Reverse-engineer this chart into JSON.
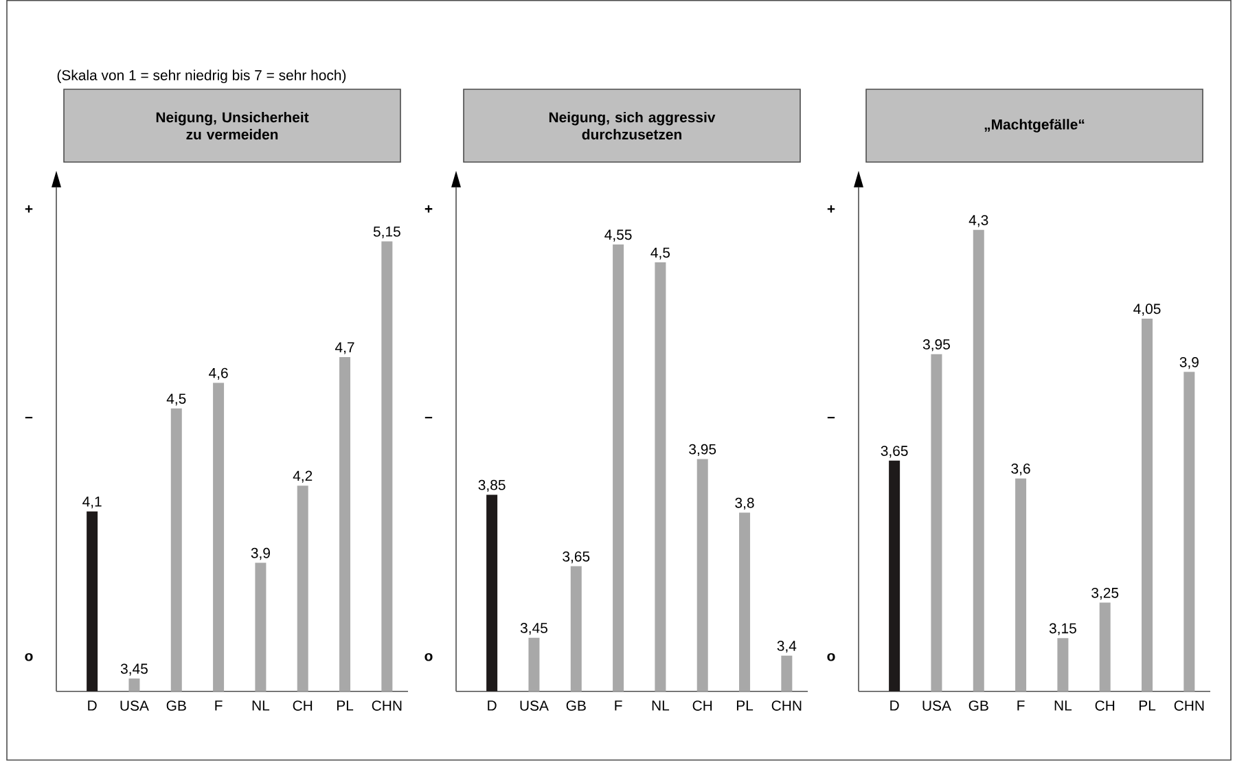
{
  "chart_data": [
    {
      "type": "bar",
      "title": "Neigung, Unsicherheit zu vermeiden",
      "annotations": [
        "(Skala von 1 = sehr niedrig bis 7 = sehr hoch)",
        "o",
        "–",
        "+"
      ],
      "categories": [
        "D",
        "USA",
        "GB",
        "F",
        "NL",
        "CH",
        "PL",
        "CHN"
      ],
      "values": [
        4.1,
        3.45,
        4.5,
        4.6,
        3.9,
        4.2,
        4.7,
        5.15
      ],
      "value_labels": [
        "4,1",
        "3,45",
        "4,5",
        "4,6",
        "3,9",
        "4,2",
        "4,7",
        "5,15"
      ],
      "colors": [
        "#1e1a1a",
        "#a8a8a8",
        "#a8a8a8",
        "#a8a8a8",
        "#a8a8a8",
        "#a8a8a8",
        "#a8a8a8",
        "#a8a8a8"
      ],
      "ylim": [
        3.4,
        5.36
      ]
    },
    {
      "type": "bar",
      "title": "Neigung, sich aggressiv durchzusetzen",
      "annotations": [
        "o",
        "–",
        "+"
      ],
      "categories": [
        "D",
        "USA",
        "GB",
        "F",
        "NL",
        "CH",
        "PL",
        "CHN"
      ],
      "values": [
        3.85,
        3.45,
        3.65,
        4.55,
        4.5,
        3.95,
        3.8,
        3.4
      ],
      "value_labels": [
        "3,85",
        "3,45",
        "3,65",
        "4,55",
        "4,5",
        "3,95",
        "3,8",
        "3,4"
      ],
      "colors": [
        "#1e1a1a",
        "#a8a8a8",
        "#a8a8a8",
        "#a8a8a8",
        "#a8a8a8",
        "#a8a8a8",
        "#a8a8a8",
        "#a8a8a8"
      ],
      "ylim": [
        3.3,
        4.71
      ]
    },
    {
      "type": "bar",
      "title": "„Machtgefälle“",
      "annotations": [
        "o",
        "–",
        "+"
      ],
      "categories": [
        "D",
        "USA",
        "GB",
        "F",
        "NL",
        "CH",
        "PL",
        "CHN"
      ],
      "values": [
        3.65,
        3.95,
        4.3,
        3.6,
        3.15,
        3.25,
        4.05,
        3.9
      ],
      "value_labels": [
        "3,65",
        "3,95",
        "4,3",
        "3,6",
        "3,15",
        "3,25",
        "4,05",
        "3,9"
      ],
      "colors": [
        "#1e1a1a",
        "#a8a8a8",
        "#a8a8a8",
        "#a8a8a8",
        "#a8a8a8",
        "#a8a8a8",
        "#a8a8a8",
        "#a8a8a8"
      ],
      "ylim": [
        3.0,
        4.42
      ]
    }
  ]
}
